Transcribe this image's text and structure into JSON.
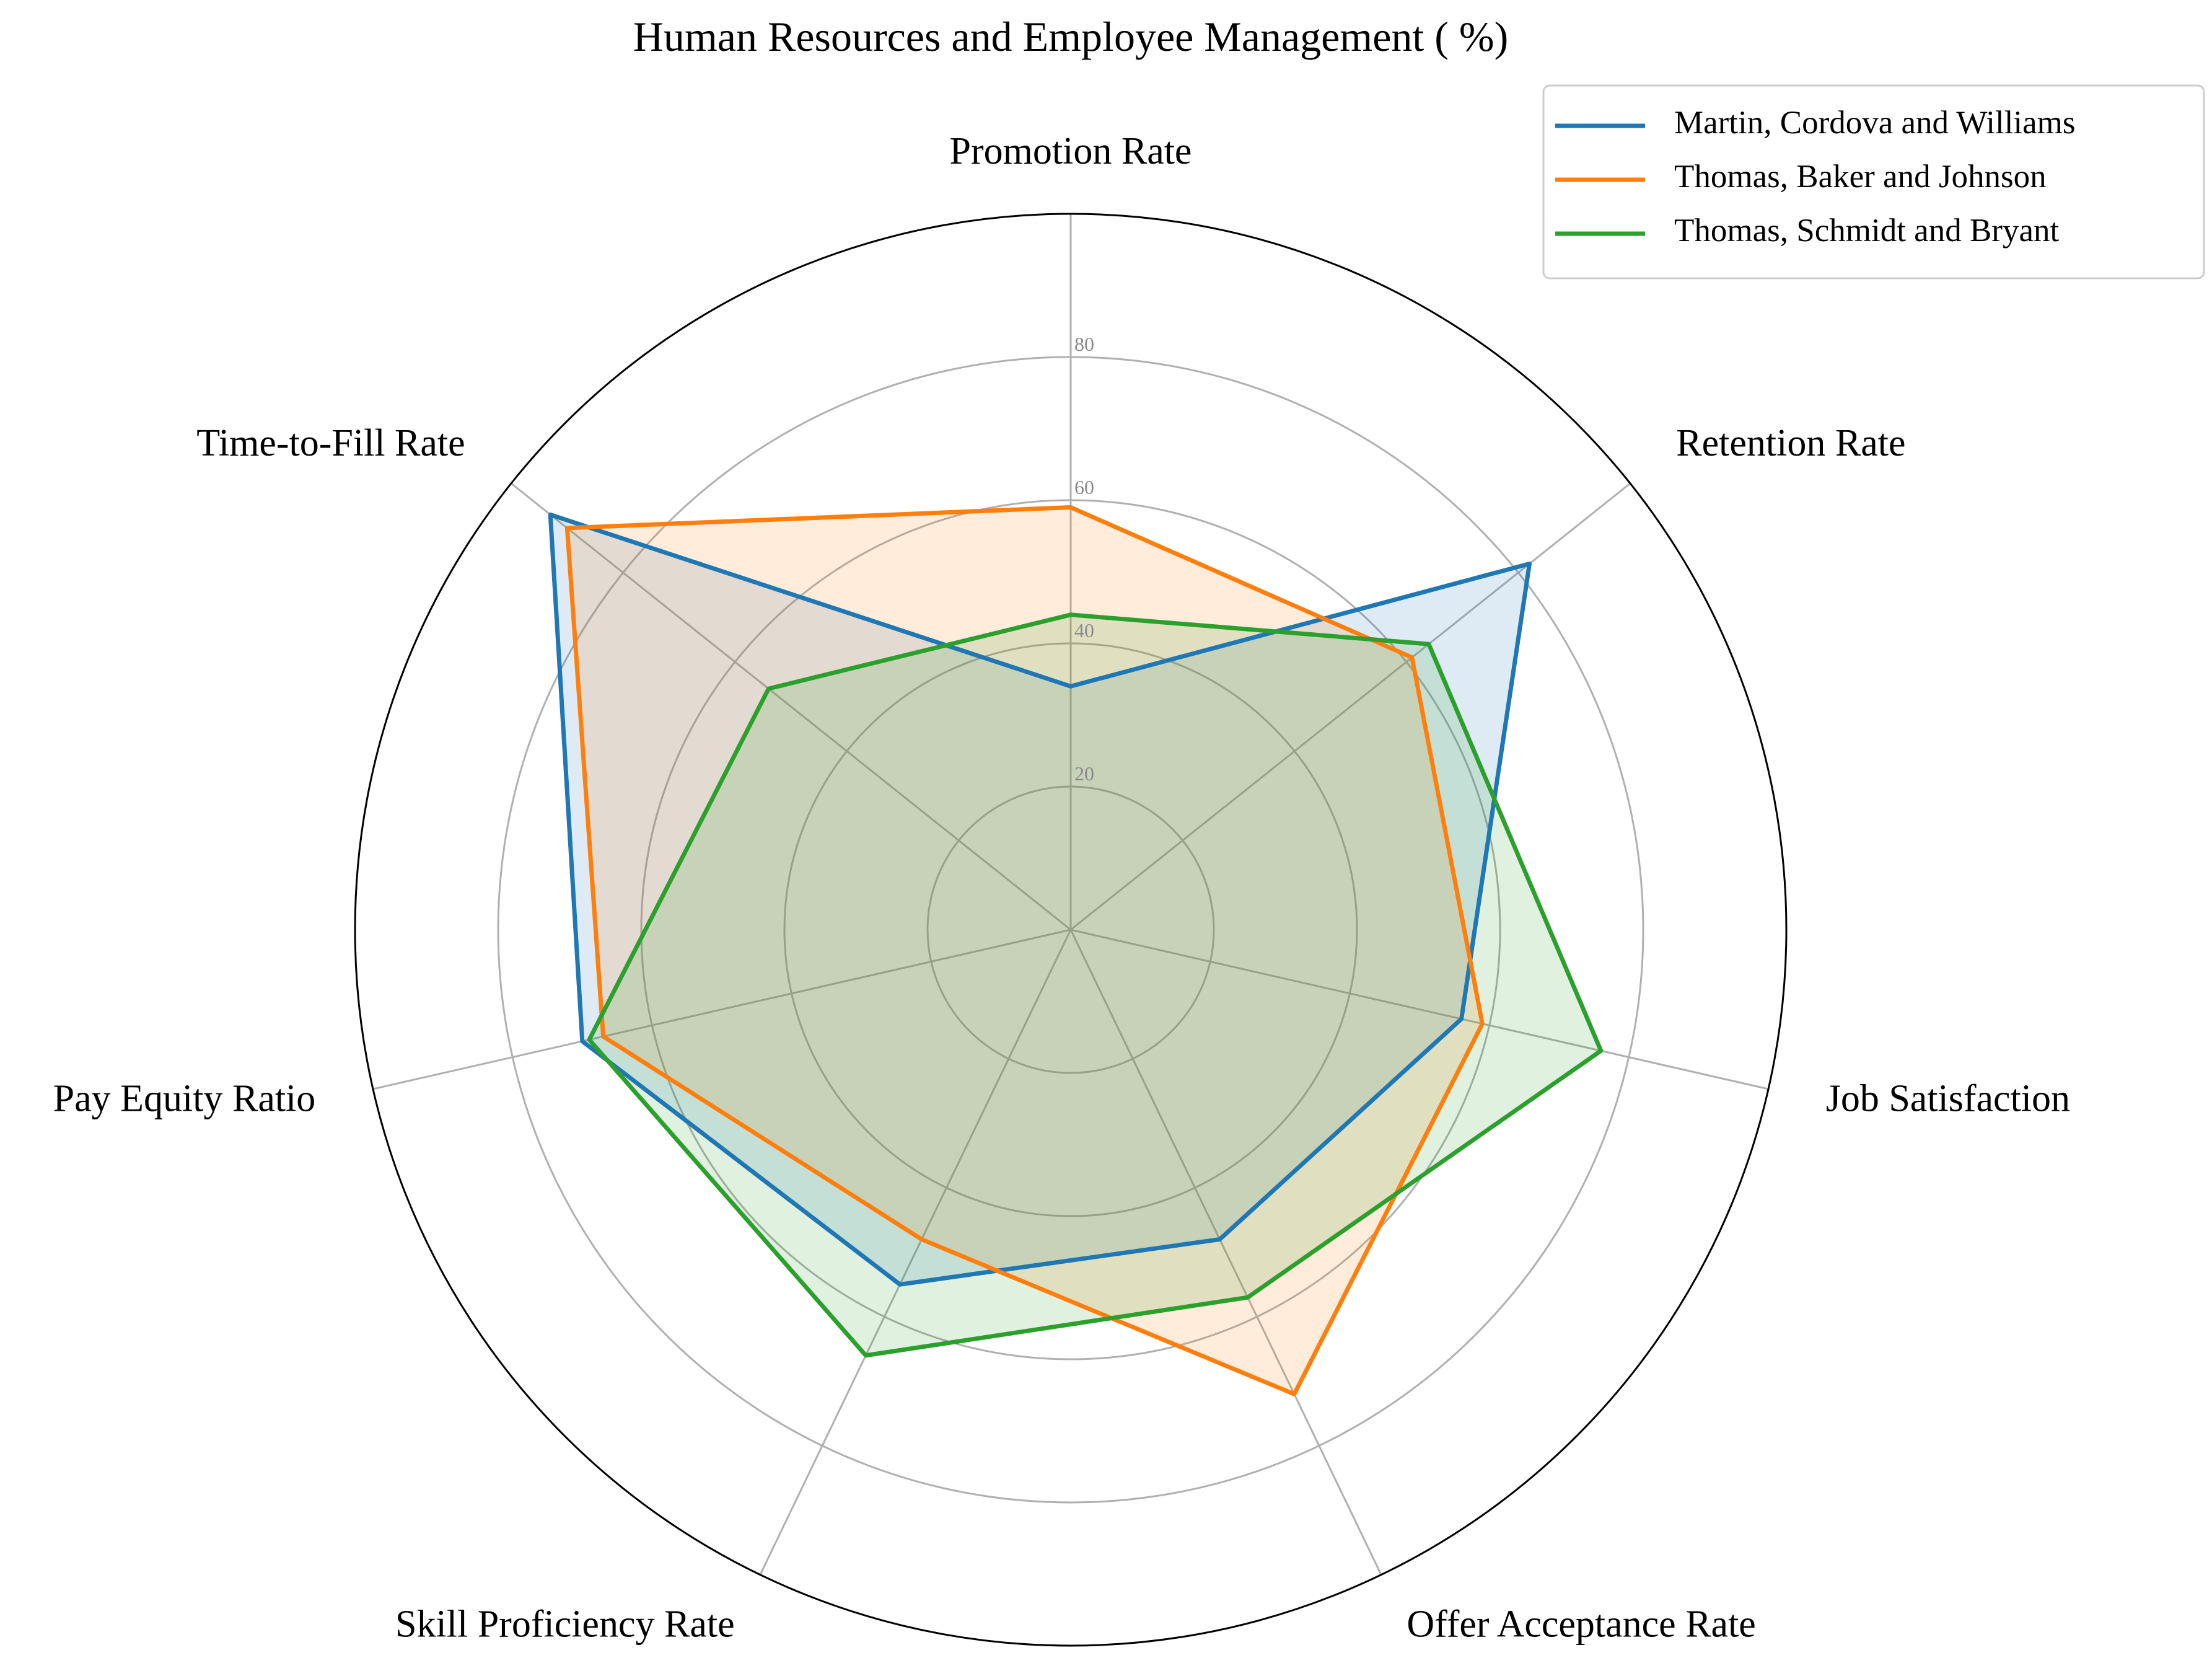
{
  "chart_data": {
    "type": "radar",
    "title": "Human Resources and Employee Management ( %)",
    "categories": [
      "Promotion Rate",
      "Retention Rate",
      "Job Satisfaction",
      "Offer Acceptance Rate",
      "Skill Proficiency Rate",
      "Pay Equity Ratio",
      "Time-to-Fill Rate"
    ],
    "rlim": [
      0,
      100
    ],
    "rticks": [
      20,
      40,
      60,
      80
    ],
    "rtick_labels": [
      "20",
      "40",
      "60",
      "80"
    ],
    "grid": true,
    "legend_position": "upper-right",
    "series": [
      {
        "name": "Martin, Cordova and Williams",
        "color": "#1f77b4",
        "values": [
          34,
          82,
          56,
          48,
          55,
          70,
          93
        ]
      },
      {
        "name": "Thomas, Baker and Johnson",
        "color": "#ff7f0e",
        "values": [
          59,
          61,
          59,
          72,
          48,
          67,
          90
        ]
      },
      {
        "name": "Thomas, Schmidt and Bryant",
        "color": "#2ca02c",
        "values": [
          44,
          64,
          76,
          57,
          66,
          69,
          54
        ]
      }
    ]
  }
}
